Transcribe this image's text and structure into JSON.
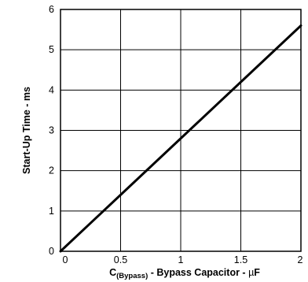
{
  "chart_data": {
    "type": "line",
    "title": "",
    "xlabel": {
      "main": "C",
      "subscript": "(Bypass)",
      "rest": " - Bypass Capacitor - ",
      "unit_prefix": "µ",
      "unit": "F"
    },
    "ylabel": "Start-Up Time - ms",
    "xlim": [
      0,
      2
    ],
    "ylim": [
      0,
      6
    ],
    "x_ticks": [
      0,
      0.5,
      1,
      1.5,
      2
    ],
    "x_tick_labels": [
      "0",
      "0.5",
      "1",
      "1.5",
      "2"
    ],
    "y_ticks": [
      0,
      1,
      2,
      3,
      4,
      5,
      6
    ],
    "y_tick_labels": [
      "0",
      "1",
      "2",
      "3",
      "4",
      "5",
      "6"
    ],
    "grid": true,
    "legend": "none",
    "series": [
      {
        "x": [
          0,
          0.5,
          1,
          1.5,
          2
        ],
        "y": [
          0,
          1.4,
          2.8,
          4.2,
          5.6
        ],
        "color": "#000000"
      }
    ]
  }
}
